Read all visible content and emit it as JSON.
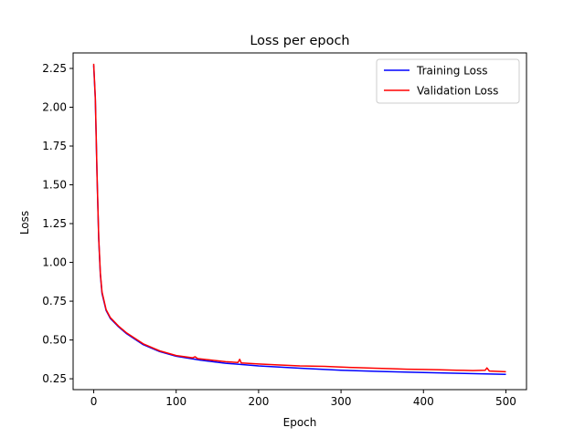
{
  "chart_data": {
    "type": "line",
    "title": "Loss per epoch",
    "xlabel": "Epoch",
    "ylabel": "Loss",
    "xlim": [
      -25,
      525
    ],
    "ylim": [
      0.18,
      2.35
    ],
    "x_ticks": [
      0,
      100,
      200,
      300,
      400,
      500
    ],
    "y_ticks": [
      0.25,
      0.5,
      0.75,
      1.0,
      1.25,
      1.5,
      1.75,
      2.0,
      2.25
    ],
    "x_tick_labels": [
      "0",
      "100",
      "200",
      "300",
      "400",
      "500"
    ],
    "y_tick_labels": [
      "0.25",
      "0.50",
      "0.75",
      "1.00",
      "1.25",
      "1.50",
      "1.75",
      "2.00",
      "2.25"
    ],
    "grid": false,
    "legend_position": "top-right",
    "series": [
      {
        "name": "Training Loss",
        "color": "#0000ff",
        "x": [
          0,
          2,
          4,
          6,
          8,
          10,
          15,
          20,
          30,
          40,
          60,
          80,
          100,
          130,
          160,
          200,
          250,
          300,
          350,
          400,
          450,
          500
        ],
        "values": [
          2.27,
          2.05,
          1.55,
          1.15,
          0.92,
          0.8,
          0.69,
          0.64,
          0.585,
          0.54,
          0.47,
          0.425,
          0.395,
          0.37,
          0.35,
          0.333,
          0.318,
          0.305,
          0.297,
          0.29,
          0.284,
          0.279
        ]
      },
      {
        "name": "Validation Loss",
        "color": "#ff0000",
        "x": [
          0,
          2,
          4,
          6,
          8,
          10,
          15,
          20,
          30,
          40,
          60,
          80,
          100,
          120,
          123,
          126,
          140,
          160,
          175,
          177,
          179,
          200,
          220,
          250,
          280,
          300,
          320,
          340,
          360,
          380,
          400,
          420,
          440,
          460,
          475,
          477,
          480,
          500
        ],
        "values": [
          2.28,
          2.06,
          1.56,
          1.16,
          0.93,
          0.81,
          0.695,
          0.645,
          0.59,
          0.545,
          0.475,
          0.43,
          0.4,
          0.385,
          0.392,
          0.38,
          0.372,
          0.36,
          0.355,
          0.375,
          0.352,
          0.345,
          0.34,
          0.333,
          0.33,
          0.325,
          0.322,
          0.318,
          0.315,
          0.312,
          0.31,
          0.308,
          0.305,
          0.303,
          0.305,
          0.32,
          0.3,
          0.295
        ]
      }
    ]
  }
}
